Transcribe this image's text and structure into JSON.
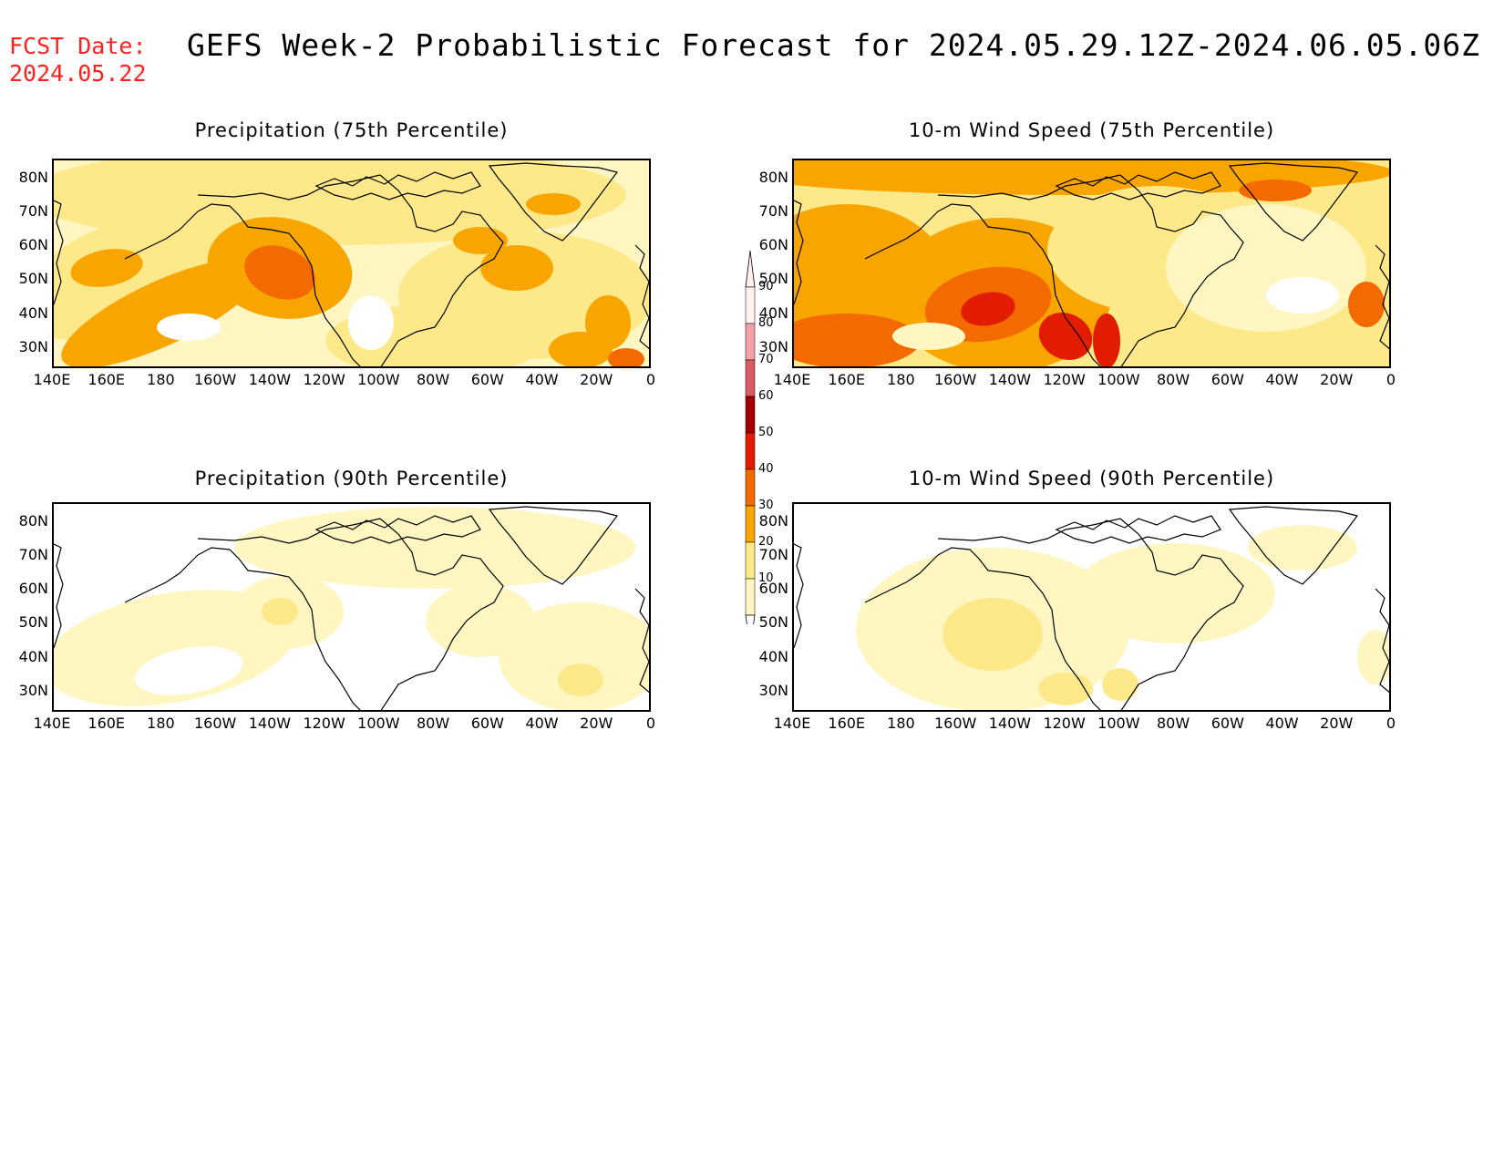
{
  "header": {
    "fcst_label": "FCST Date:",
    "fcst_date": "2024.05.22",
    "title": "GEFS Week-2 Probabilistic Forecast for 2024.05.29.12Z-2024.06.05.06Z"
  },
  "axes": {
    "lat_labels": [
      "80N",
      "70N",
      "60N",
      "50N",
      "40N",
      "30N"
    ],
    "lon_labels": [
      "140E",
      "160E",
      "180",
      "160W",
      "140W",
      "120W",
      "100W",
      "80W",
      "60W",
      "40W",
      "20W",
      "0"
    ]
  },
  "panels": [
    {
      "title": "Precipitation (75th Percentile)",
      "field": "precip75"
    },
    {
      "title": "10-m Wind Speed (75th Percentile)",
      "field": "wind75"
    },
    {
      "title": "Precipitation (90th Percentile)",
      "field": "precip90"
    },
    {
      "title": "10-m Wind Speed (90th Percentile)",
      "field": "wind90"
    }
  ],
  "colorbar": {
    "labels": [
      "90",
      "80",
      "70",
      "60",
      "50",
      "40",
      "30",
      "20",
      "10"
    ],
    "colors": [
      "#fff0f0",
      "#f4a0a8",
      "#d85a64",
      "#a40000",
      "#e21c00",
      "#f26a00",
      "#f9a500",
      "#fde98a",
      "#fff6c2"
    ]
  },
  "palette": {
    "level_0": "#ffffff",
    "level_10": "#fff6c2",
    "level_20": "#fde98a",
    "level_30": "#f9a500",
    "level_40": "#f26a00",
    "level_50": "#e21c00"
  }
}
